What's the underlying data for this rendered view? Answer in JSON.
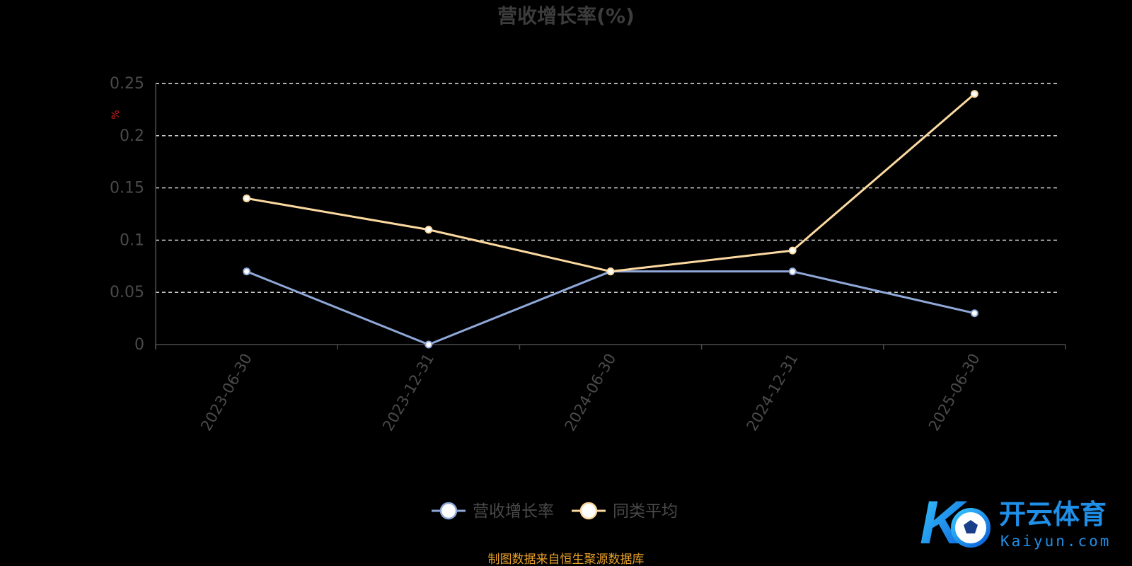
{
  "chart_data": {
    "type": "line",
    "title": "营收增长率(%)",
    "ylabel": "%",
    "xlabel": "",
    "categories": [
      "2023-06-30",
      "2023-12-31",
      "2024-06-30",
      "2024-12-31",
      "2025-06-30"
    ],
    "y_ticks": [
      "0",
      "0.05",
      "0.1",
      "0.15",
      "0.2",
      "0.25"
    ],
    "ylim": [
      0,
      0.25
    ],
    "grid": true,
    "legend_position": "bottom-center",
    "series": [
      {
        "name": "营收增长率",
        "values": [
          0.07,
          0.0,
          0.07,
          0.07,
          0.03
        ],
        "color": "#8fa8d8"
      },
      {
        "name": "同类平均",
        "values": [
          0.14,
          0.11,
          0.07,
          0.09,
          0.24
        ],
        "color": "#fbd9a0"
      }
    ]
  },
  "footer": {
    "source_text": "制图数据来自恒生聚源数据库"
  },
  "logo": {
    "text_cn": "开云体育",
    "text_en": "Kaiyun.com",
    "mark": "K"
  }
}
